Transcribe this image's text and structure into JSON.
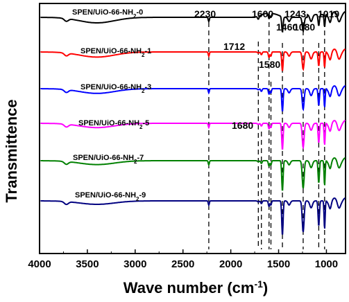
{
  "chart_data": {
    "type": "line",
    "title": "",
    "xlabel": "Wave number (cm",
    "xlabel_sup": "-1",
    "xlabel_end": ")",
    "ylabel": "Transmittence",
    "xlim": [
      4000,
      800
    ],
    "x_ticks": [
      4000,
      3500,
      3000,
      2500,
      2000,
      1500,
      1000
    ],
    "x_tick_labels": [
      "4000",
      "3500",
      "3000",
      "2500",
      "2000",
      "1500",
      "1000"
    ],
    "grid": false,
    "series": [
      {
        "name": "SPEN/UiO-66-NH",
        "sub": "2",
        "suffix": "-0",
        "color": "#000000",
        "offset": 0
      },
      {
        "name": "SPEN/UiO-66-NH",
        "sub": "2",
        "suffix": "-1",
        "color": "#ff0000",
        "offset": 1
      },
      {
        "name": "SPEN/UiO-66-NH",
        "sub": "2",
        "suffix": "-3",
        "color": "#0000ff",
        "offset": 2
      },
      {
        "name": "SPEN/UiO-66-NH",
        "sub": "2",
        "suffix": "-5",
        "color": "#ff00ff",
        "offset": 3
      },
      {
        "name": "SPEN/UiO-66-NH",
        "sub": "2",
        "suffix": "-7",
        "color": "#008000",
        "offset": 4
      },
      {
        "name": "SPEN/UiO-66-NH",
        "sub": "2",
        "suffix": "-9",
        "color": "#000080",
        "offset": 5
      }
    ],
    "reference_lines": [
      2230,
      1712,
      1680,
      1600,
      1580,
      1460,
      1243,
      1080,
      1019
    ],
    "annotations": [
      {
        "text": "2230",
        "x": 2230
      },
      {
        "text": "1600",
        "x": 1600
      },
      {
        "text": "1243",
        "x": 1243
      },
      {
        "text": "1019",
        "x": 1019
      },
      {
        "text": "1712",
        "x": 1712
      },
      {
        "text": "1460",
        "x": 1460
      },
      {
        "text": "1080",
        "x": 1080
      },
      {
        "text": "1580",
        "x": 1580
      },
      {
        "text": "1680",
        "x": 1680
      }
    ]
  }
}
